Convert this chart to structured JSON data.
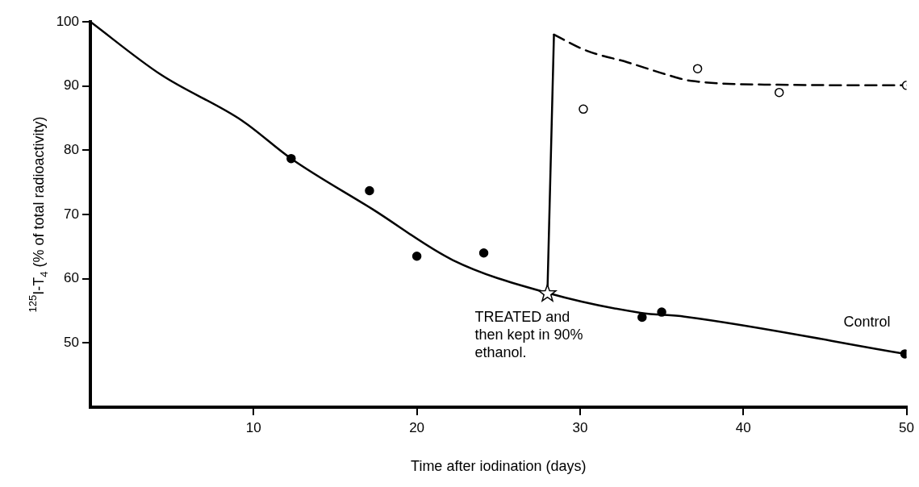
{
  "chart_data": {
    "type": "line",
    "xlabel": "Time after iodination (days)",
    "ylabel": "$^{125}$I-T$_{4}$ (% of total radioactivity)",
    "xlim": [
      0,
      50
    ],
    "xticks": [
      10,
      20,
      30,
      40,
      50
    ],
    "ylim": [
      40,
      100
    ],
    "yticks": [
      50,
      60,
      70,
      80,
      90,
      100
    ],
    "grid": false,
    "legend": false,
    "series": [
      {
        "name": "Control",
        "color": "#000000",
        "line_style": "solid",
        "marker": "none",
        "x": [
          0,
          4.3,
          9.3,
          12.3,
          17.3,
          22.2,
          28,
          33.7,
          36.4,
          49.9
        ],
        "values": [
          100,
          91.8,
          84.6,
          78.7,
          70.8,
          62.9,
          57.8,
          54.7,
          54.1,
          48.3
        ]
      },
      {
        "color": "#000000",
        "line_style": "solid",
        "marker": "none",
        "x": [
          28,
          28.4
        ],
        "values": [
          57.8,
          98
        ]
      },
      {
        "color": "#000000",
        "line_style": "dashed",
        "marker": "none",
        "x": [
          28.4,
          30.4,
          32.9,
          35.4,
          36.8,
          42.1,
          50
        ],
        "values": [
          98,
          95.5,
          93.7,
          91.7,
          90.8,
          90.2,
          90.1
        ]
      },
      {
        "type": "scatter",
        "color": "#000000",
        "marker": "circle",
        "x": [
          12.3,
          17.1,
          20,
          24.1,
          33.8,
          35,
          49.9
        ],
        "values": [
          78.7,
          73.7,
          63.5,
          64,
          54,
          54.8,
          48.3
        ]
      },
      {
        "type": "scatter",
        "color": "#ffffff",
        "marker": "circle",
        "x": [
          30.2,
          37.2,
          42.2,
          50
        ],
        "values": [
          86.4,
          92.7,
          89,
          90.1
        ]
      },
      {
        "type": "scatter",
        "color": "#ffffff",
        "marker": "star",
        "x": [
          28
        ],
        "values": [
          57.8
        ]
      }
    ],
    "annotations": [
      {
        "text": "TREATED and then kept in 90% ethanol.",
        "x": 28,
        "y": 57.8
      }
    ]
  }
}
